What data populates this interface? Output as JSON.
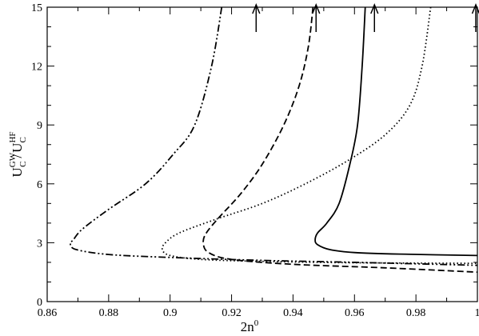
{
  "chart_data": {
    "type": "line",
    "xlabel": "2n",
    "xlabel_sup": "0",
    "ylabel_num_main": "U",
    "ylabel_num_sup": "GW",
    "ylabel_num_sub": "C",
    "ylabel_slash": "/",
    "ylabel_den_main": "U",
    "ylabel_den_sup": "HF",
    "ylabel_den_sub": "C",
    "xlim": [
      0.86,
      1.0
    ],
    "ylim": [
      0,
      15
    ],
    "xticks": [
      0.86,
      0.88,
      0.9,
      0.92,
      0.94,
      0.96,
      0.98,
      1
    ],
    "xtick_labels": [
      "0.86",
      "0.88",
      "0.9",
      "0.92",
      "0.94",
      "0.96",
      "0.98",
      "1"
    ],
    "yticks": [
      0,
      3,
      6,
      9,
      12,
      15
    ],
    "ytick_labels": [
      "0",
      "3",
      "6",
      "9",
      "12",
      "15"
    ],
    "grid": false,
    "legend": "none",
    "arrows_x": [
      0.928,
      0.9475,
      0.9665,
      1.0
    ],
    "series": [
      {
        "style": "solid",
        "points": [
          [
            0.9635,
            15
          ],
          [
            0.9625,
            12
          ],
          [
            0.961,
            9
          ],
          [
            0.9585,
            7
          ],
          [
            0.955,
            5
          ],
          [
            0.951,
            4
          ],
          [
            0.948,
            3.5
          ],
          [
            0.9472,
            3.15
          ],
          [
            0.948,
            2.9
          ],
          [
            0.952,
            2.65
          ],
          [
            0.96,
            2.5
          ],
          [
            0.975,
            2.42
          ],
          [
            1.0,
            2.35
          ]
        ]
      },
      {
        "style": "dotted",
        "points": [
          [
            0.9848,
            15
          ],
          [
            0.982,
            12
          ],
          [
            0.978,
            10
          ],
          [
            0.97,
            8.5
          ],
          [
            0.958,
            7.2
          ],
          [
            0.944,
            6
          ],
          [
            0.93,
            5
          ],
          [
            0.915,
            4.2
          ],
          [
            0.903,
            3.5
          ],
          [
            0.8985,
            3.0
          ],
          [
            0.8975,
            2.65
          ],
          [
            0.9,
            2.35
          ],
          [
            0.91,
            2.15
          ],
          [
            0.93,
            2.05
          ],
          [
            0.96,
            1.98
          ],
          [
            1.0,
            1.95
          ]
        ]
      },
      {
        "style": "dashed",
        "points": [
          [
            0.9465,
            15
          ],
          [
            0.945,
            13
          ],
          [
            0.942,
            11
          ],
          [
            0.937,
            9
          ],
          [
            0.93,
            7
          ],
          [
            0.923,
            5.5
          ],
          [
            0.916,
            4.3
          ],
          [
            0.9118,
            3.5
          ],
          [
            0.9108,
            3.0
          ],
          [
            0.9125,
            2.5
          ],
          [
            0.92,
            2.15
          ],
          [
            0.94,
            1.9
          ],
          [
            0.97,
            1.72
          ],
          [
            1.0,
            1.5
          ]
        ]
      },
      {
        "style": "dashdotdot",
        "points": [
          [
            0.9168,
            15
          ],
          [
            0.9135,
            12
          ],
          [
            0.908,
            9
          ],
          [
            0.901,
            7.5
          ],
          [
            0.892,
            6
          ],
          [
            0.88,
            4.7
          ],
          [
            0.8715,
            3.7
          ],
          [
            0.8685,
            3.15
          ],
          [
            0.8675,
            2.95
          ],
          [
            0.8695,
            2.65
          ],
          [
            0.88,
            2.4
          ],
          [
            0.9,
            2.25
          ],
          [
            0.93,
            2.1
          ],
          [
            0.96,
            2.0
          ],
          [
            1.0,
            1.85
          ]
        ]
      }
    ]
  }
}
